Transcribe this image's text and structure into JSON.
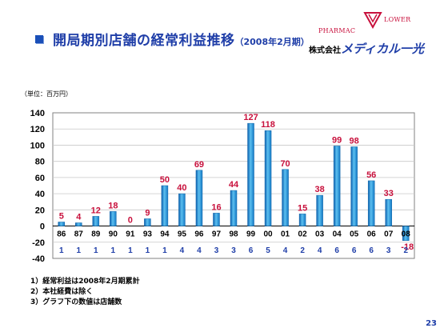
{
  "slide": {
    "title": "開局期別店舗の経常利益推移",
    "title_suffix": "（2008年2月期）",
    "company_prefix": "株式会社",
    "company_brand": "メディカル一光",
    "logo_text_top": "LOWER",
    "logo_text_left": "PHARMAC",
    "unit_label": "（単位：百万円）",
    "notes": [
      "1）経常利益は2008年2月期累計",
      "2）本社経費は除く",
      "3）グラフ下の数値は店舗数"
    ],
    "page_number": "23"
  },
  "colors": {
    "title": "#1f3ea8",
    "bar": "#1e8fd8",
    "data_label": "#c8103c",
    "store_count": "#1f3ea8",
    "grid": "#c8c8c8"
  },
  "chart_data": {
    "type": "bar",
    "categories": [
      "86",
      "87",
      "89",
      "90",
      "91",
      "93",
      "94",
      "95",
      "96",
      "97",
      "98",
      "99",
      "00",
      "01",
      "02",
      "03",
      "04",
      "05",
      "06",
      "07",
      "08"
    ],
    "values": [
      5,
      4,
      12,
      18,
      0,
      9,
      50,
      40,
      69,
      16,
      44,
      127,
      118,
      70,
      15,
      38,
      99,
      98,
      56,
      33,
      -18
    ],
    "store_counts": [
      "1",
      "1",
      "1",
      "1",
      "1",
      "1",
      "1",
      "4",
      "4",
      "3",
      "3",
      "6",
      "5",
      "4",
      "2",
      "4",
      "6",
      "6",
      "6",
      "3",
      "2"
    ],
    "ylim": [
      -40,
      140
    ],
    "yticks": [
      -40,
      -20,
      0,
      20,
      40,
      60,
      80,
      100,
      120,
      140
    ],
    "grid": true,
    "legend": "none"
  }
}
